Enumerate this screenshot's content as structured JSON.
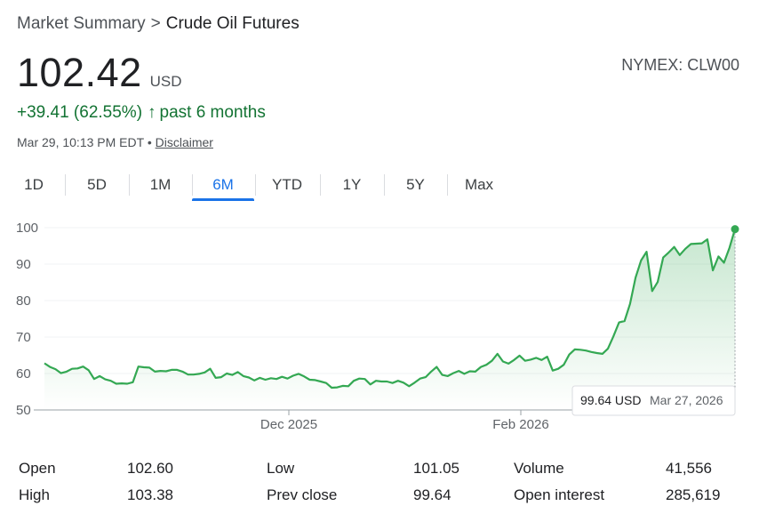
{
  "breadcrumb": {
    "parent": "Market Summary",
    "separator": ">",
    "current": "Crude Oil Futures"
  },
  "price": {
    "value": "102.42",
    "currency": "USD"
  },
  "ticker": "NYMEX: CLW00",
  "change": {
    "text": "+39.41 (62.55%)",
    "arrow": "↑",
    "period": "past 6 months"
  },
  "meta": {
    "timestamp": "Mar 29, 10:13 PM EDT",
    "bullet": "•",
    "disclaimer": "Disclaimer"
  },
  "tabs": [
    "1D",
    "5D",
    "1M",
    "6M",
    "YTD",
    "1Y",
    "5Y",
    "Max"
  ],
  "active_tab": "6M",
  "colors": {
    "line": "#34a853",
    "accent": "#1a73e8",
    "positive": "#137333"
  },
  "tooltip": {
    "value": "99.64 USD",
    "date": "Mar 27, 2026"
  },
  "stats": [
    {
      "label": "Open",
      "value": "102.60"
    },
    {
      "label": "High",
      "value": "103.38"
    },
    {
      "label": "Low",
      "value": "101.05"
    },
    {
      "label": "Prev close",
      "value": "99.64"
    },
    {
      "label": "Volume",
      "value": "41,556"
    },
    {
      "label": "Open interest",
      "value": "285,619"
    }
  ],
  "chart_data": {
    "type": "area",
    "ylim": [
      50,
      100
    ],
    "yticks": [
      100,
      90,
      80,
      70,
      60,
      50
    ],
    "xticks": [
      "Dec 2025",
      "Feb 2026"
    ],
    "grid": true,
    "series": [
      {
        "values": [
          62.8,
          61.8,
          61.2,
          60.1,
          60.5,
          61.3,
          61.4,
          61.9,
          60.9,
          58.5,
          59.3,
          58.4,
          58.0,
          57.2,
          57.3,
          57.2,
          57.6,
          61.9,
          61.7,
          61.6,
          60.5,
          60.7,
          60.6,
          61.0,
          61.0,
          60.5,
          59.7,
          59.7,
          59.9,
          60.3,
          61.3,
          58.8,
          59.0,
          60.0,
          59.6,
          60.4,
          59.3,
          58.9,
          58.1,
          58.8,
          58.3,
          58.7,
          58.5,
          59.1,
          58.6,
          59.4,
          59.9,
          59.2,
          58.3,
          58.2,
          57.8,
          57.4,
          56.1,
          56.2,
          56.6,
          56.5,
          58.0,
          58.6,
          58.5,
          57.0,
          58.0,
          57.8,
          57.8,
          57.4,
          58.0,
          57.5,
          56.5,
          57.5,
          58.6,
          59.0,
          60.5,
          61.8,
          59.6,
          59.3,
          60.1,
          60.7,
          59.9,
          60.6,
          60.5,
          61.8,
          62.4,
          63.5,
          65.4,
          63.3,
          62.7,
          63.7,
          64.9,
          63.5,
          63.8,
          64.3,
          63.7,
          64.6,
          60.8,
          61.3,
          62.4,
          65.2,
          66.6,
          66.5,
          66.3,
          65.9,
          65.6,
          65.4,
          66.8,
          70.2,
          74.0,
          74.4,
          79.1,
          86.3,
          91.0,
          93.4,
          82.6,
          85.1,
          91.8,
          93.2,
          94.7,
          92.5,
          94.2,
          95.5,
          95.6,
          95.7,
          96.8,
          88.3,
          92.1,
          90.4,
          94.5,
          99.6
        ],
        "last": 102.42
      }
    ]
  }
}
